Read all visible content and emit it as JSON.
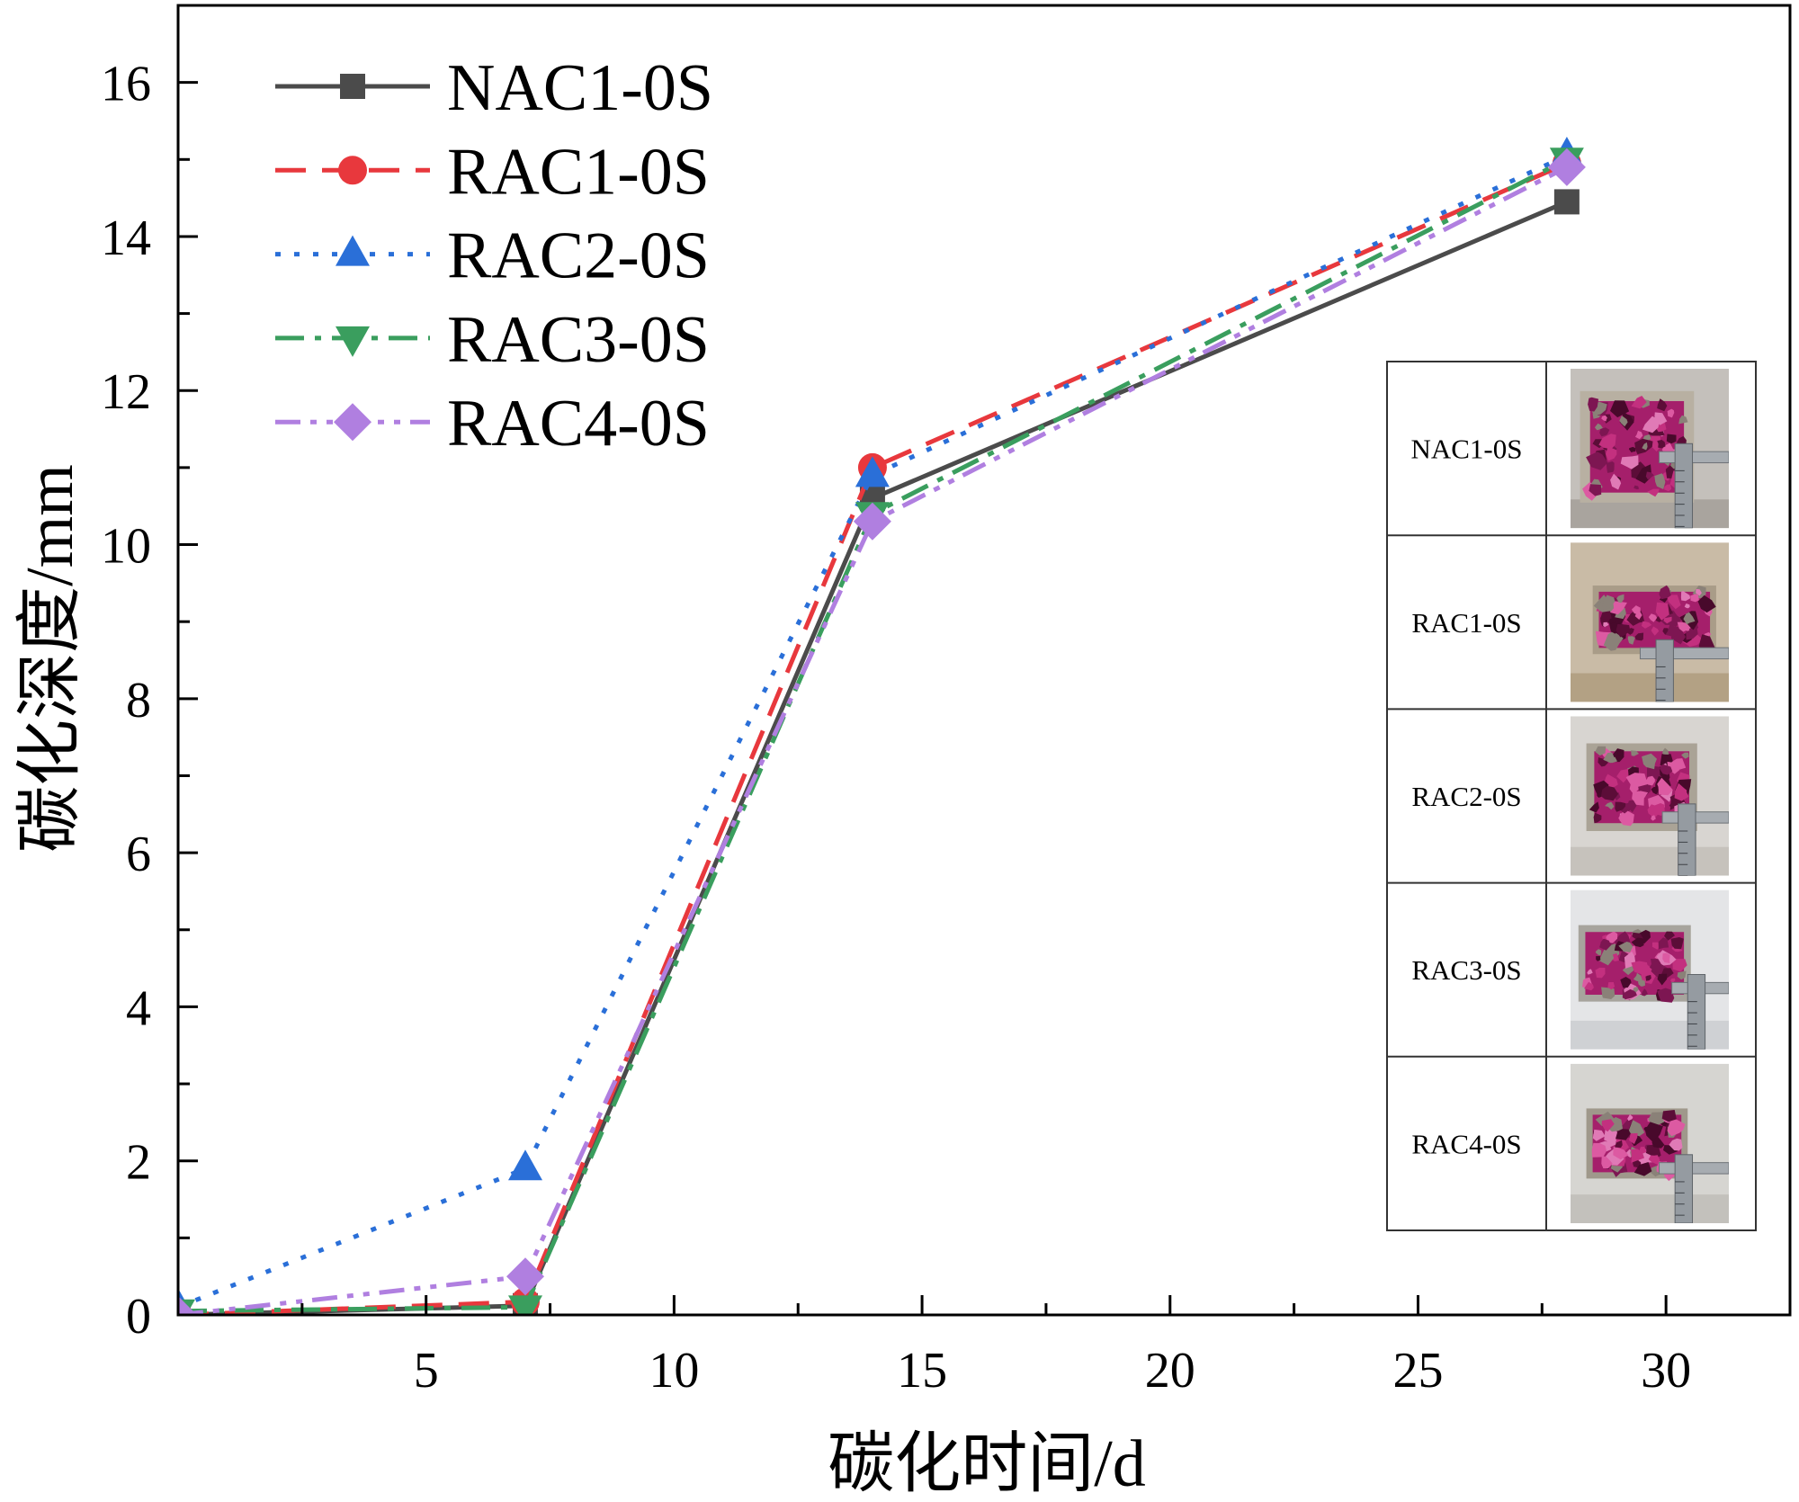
{
  "chart_data": {
    "type": "line",
    "xlabel": "碳化时间/d",
    "ylabel": "碳化深度/mm",
    "xlim": [
      0,
      32.5
    ],
    "ylim": [
      0,
      17
    ],
    "xticks": [
      5,
      10,
      15,
      20,
      25,
      30
    ],
    "yticks": [
      0,
      2,
      4,
      6,
      8,
      10,
      12,
      14,
      16
    ],
    "x_minor_step": 2.5,
    "y_minor_step": 1,
    "grid": false,
    "legend_position": "top-left",
    "x": [
      0,
      7,
      14,
      28
    ],
    "series": [
      {
        "name": "NAC1-0S",
        "color": "#4b4b4b",
        "values": [
          0,
          0.12,
          10.6,
          14.45
        ]
      },
      {
        "name": "RAC1-0S",
        "color": "#e8383d",
        "values": [
          0,
          0.17,
          11.0,
          14.95
        ]
      },
      {
        "name": "RAC2-0S",
        "color": "#2a6fd8",
        "values": [
          0.1,
          1.9,
          10.9,
          15.05
        ]
      },
      {
        "name": "RAC3-0S",
        "color": "#3a9e5e",
        "values": [
          0.05,
          0.1,
          10.4,
          15.0
        ]
      },
      {
        "name": "RAC4-0S",
        "color": "#b07fe0",
        "values": [
          0,
          0.5,
          10.3,
          14.9
        ]
      }
    ]
  },
  "inset_table": {
    "rows": [
      {
        "label": "NAC1-0S"
      },
      {
        "label": "RAC1-0S"
      },
      {
        "label": "RAC2-0S"
      },
      {
        "label": "RAC3-0S"
      },
      {
        "label": "RAC4-0S"
      }
    ]
  }
}
